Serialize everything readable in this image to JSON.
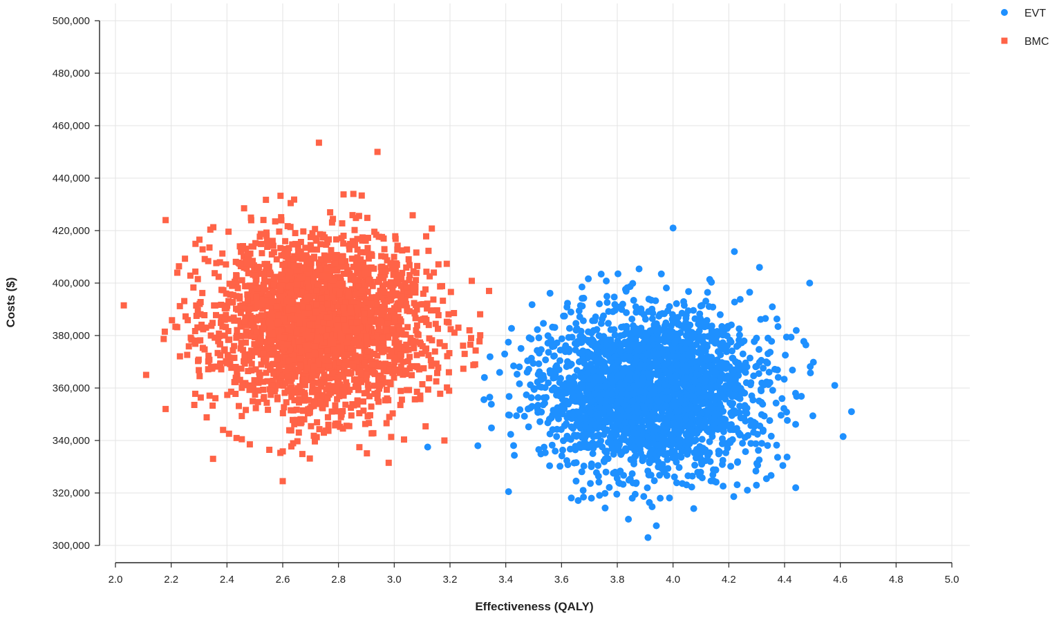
{
  "chart_data": {
    "type": "scatter",
    "title": "",
    "xlabel": "Effectiveness (QALY)",
    "ylabel": "Costs ($)",
    "xlim": [
      2.0,
      5.0
    ],
    "ylim": [
      300000,
      500000
    ],
    "x_ticks": [
      "2.0",
      "2.2",
      "2.4",
      "2.6",
      "2.8",
      "3.0",
      "3.2",
      "3.4",
      "3.6",
      "3.8",
      "4.0",
      "4.2",
      "4.4",
      "4.6",
      "4.8",
      "5.0"
    ],
    "y_ticks": [
      "300,000",
      "320,000",
      "340,000",
      "360,000",
      "380,000",
      "400,000",
      "420,000",
      "440,000",
      "460,000",
      "480,000",
      "500,000"
    ],
    "grid": true,
    "legend_position": "top-right",
    "series": [
      {
        "name": "EVT",
        "marker": "circle",
        "color": "#1e90ff",
        "point_count": 2600,
        "center": {
          "x": 3.92,
          "y": 359000
        },
        "spread_sd": {
          "x": 0.2,
          "y": 15500
        },
        "outliers": [
          [
            4.0,
            421000
          ],
          [
            4.49,
            400000
          ],
          [
            4.64,
            351000
          ],
          [
            3.91,
            303000
          ],
          [
            3.12,
            337500
          ],
          [
            4.22,
            412000
          ],
          [
            4.31,
            406000
          ],
          [
            4.44,
            322000
          ],
          [
            3.41,
            320500
          ],
          [
            3.94,
            307500
          ],
          [
            3.84,
            310000
          ],
          [
            4.61,
            341500
          ],
          [
            4.58,
            361000
          ],
          [
            3.3,
            338000
          ]
        ]
      },
      {
        "name": "BMC",
        "marker": "square",
        "color": "#ff6347",
        "point_count": 2600,
        "center": {
          "x": 2.74,
          "y": 384000
        },
        "spread_sd": {
          "x": 0.19,
          "y": 17000
        },
        "outliers": [
          [
            2.73,
            453500
          ],
          [
            2.94,
            450000
          ],
          [
            2.03,
            391500
          ],
          [
            2.11,
            365000
          ],
          [
            2.18,
            352000
          ],
          [
            2.6,
            324500
          ],
          [
            2.35,
            333000
          ],
          [
            2.98,
            331500
          ],
          [
            3.23,
            383000
          ],
          [
            3.27,
            382000
          ],
          [
            3.29,
            369000
          ],
          [
            3.18,
            340000
          ],
          [
            3.34,
            397000
          ],
          [
            2.18,
            424000
          ]
        ]
      }
    ]
  }
}
